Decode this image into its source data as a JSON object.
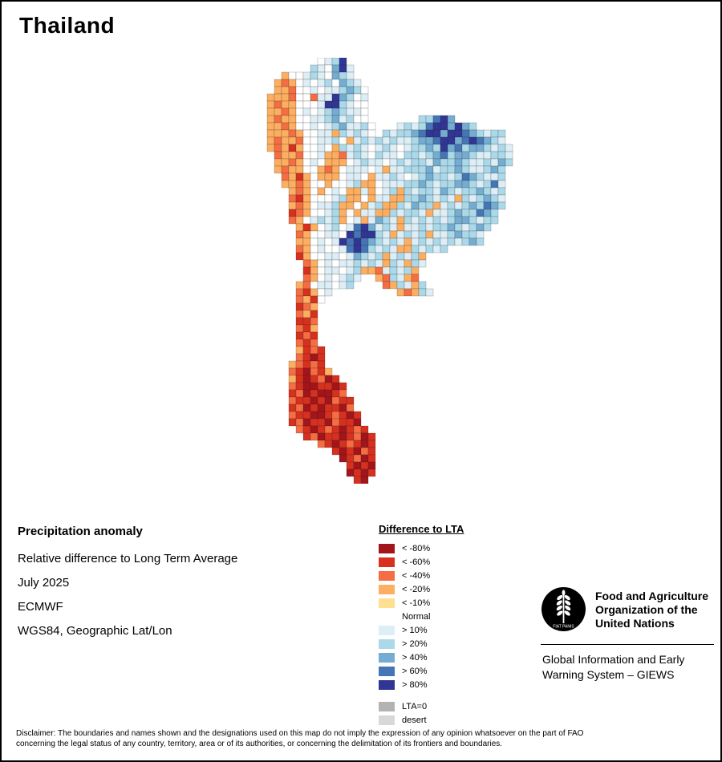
{
  "page": {
    "title": "Thailand"
  },
  "map": {
    "cell": 9,
    "palette": {
      "a": "#a3151a",
      "b": "#d7301f",
      "c": "#f46d43",
      "d": "#fdae61",
      "e": "#fee090",
      "n": "#ffffff",
      "f": "#ddeef6",
      "g": "#abd9e9",
      "h": "#74add1",
      "i": "#4575b4",
      "j": "#313695",
      "lta0": "#b3b3b3",
      "desert": "#d8d8d8"
    },
    "grid": [
      "........nfgj........................",
      ".......gfnhjf.......................",
      "...dnnfgfnhgf.......................",
      "..dcdnfnfgnhgf......................",
      "..ddcnnfnffghgn.....................",
      ".dddcnncffjhgnf.....................",
      ".dcddnnnfjjgfnn.....................",
      ".ddcdnfnfghgffn.....................",
      ".dcddnnffghfgnn.......ggijh.........",
      ".ddcdnnfnfghffgn...fgfgijjhjhg......",
      ".dddcdnnffdgfgfn.gfgghijjhjjihgfgg..",
      ".dcddcnnffgndfgfgfgffghhijjhijihgf..",
      ".dcdbdnnfndgfgfnfgfnfgghgjhighhgfgf.",
      "..cddcnnfddcfgfngffnggfghighhgffggf.",
      "..ddcdnfndddnfgffnfgfggfhgghgffgfhg.",
      "..dcddnndcdnfffnfdffggghfgghgffghg..",
      "...cdbdndddnffndffgfnfghggfgihgffg..",
      "...ddcdnndnnfgddnfffgghgfgghhgfgif..",
      "....dcdndnfnddfdnfgdgfggfhgfgghgfg..",
      "....cbdnnnfgddndffddgghgfgfdgfghgf..",
      "....dcdnffgddndfgddgfhggdfgfghgihg..",
      "....bcdnnfgdndffddgfggfdffghggihg...",
      "....cdnfgfgdnfdfhgfdgfgfgfghhgfgg...",
      ".....dbdnfgnfijhfgfdffgfgghgfghg....",
      ".....cdnnffnjijjgfdfgfgdffghggf.....",
      ".....ddnfnfjijihgfgfdfgfgfgfghg.....",
      ".....cdnfnnfijigfgfddgfgfg..........",
      ".....bdnnffnfhgfgdfgfgd.............",
      "......cdnfnffgfgfdgfdgf.............",
      "......bdnffnfgddcfgfgd..............",
      "......cdnfnfgf..dcgfdc..............",
      ".....dcnffnfg....cdgfdg.............",
      ".....cbdnf.........dcdgf............",
      ".....cdbn...........................",
      ".....bcd............................",
      ".....cdb............................",
      ".....bbc............................",
      ".....cbd............................",
      ".....bcb............................",
      ".....cbc............................",
      ".....dbcb...........................",
      ".....cbab...........................",
      "....dcbcb...........................",
      "....cbacbd..........................",
      "....dbabcab.........................",
      "....cbaabbab........................",
      "....bcabaabc........................",
      "....cbbabacbb.......................",
      "....bcababbac.......................",
      "....cbbaabcbab......................",
      "....bcabbacbba......................",
      ".....cbabcbabcb.....................",
      "......bcabbabcab....................",
      "........cbabcbab....................",
      "..........babacb....................",
      "...........abcab....................",
      "............baba....................",
      "............abab....................",
      ".............ba....................."
    ]
  },
  "legend": {
    "title": "Difference to LTA",
    "items": [
      {
        "label": "< -80%",
        "key": "a"
      },
      {
        "label": "< -60%",
        "key": "b"
      },
      {
        "label": "< -40%",
        "key": "c"
      },
      {
        "label": "< -20%",
        "key": "d"
      },
      {
        "label": "< -10%",
        "key": "e"
      },
      {
        "label": "Normal",
        "key": "n"
      },
      {
        "label": "> 10%",
        "key": "f"
      },
      {
        "label": "> 20%",
        "key": "g"
      },
      {
        "label": "> 40%",
        "key": "h"
      },
      {
        "label": "> 60%",
        "key": "i"
      },
      {
        "label": "> 80%",
        "key": "j"
      },
      {
        "label": "LTA=0",
        "key": "lta0",
        "gap_before": true
      },
      {
        "label": "desert",
        "key": "desert"
      }
    ]
  },
  "info": {
    "heading": "Precipitation anomaly",
    "lines": [
      "Relative difference to Long Term Average",
      "July 2025",
      "ECMWF",
      "WGS84, Geographic Lat/Lon"
    ]
  },
  "fao": {
    "org_lines": [
      "Food and Agriculture",
      "Organization of the",
      "United Nations"
    ],
    "giews_lines": [
      "Global Information and Early",
      "Warning System – GIEWS"
    ],
    "emblem_motto": "FIAT PANIS"
  },
  "disclaimer": {
    "lines": [
      "Disclaimer: The boundaries and names shown and the designations used on this map do not imply the expression of any opinion whatsoever on the part of FAO",
      "concerning the legal status of any country, territory, area or of its authorities, or concerning the delimitation of its frontiers and boundaries."
    ]
  }
}
